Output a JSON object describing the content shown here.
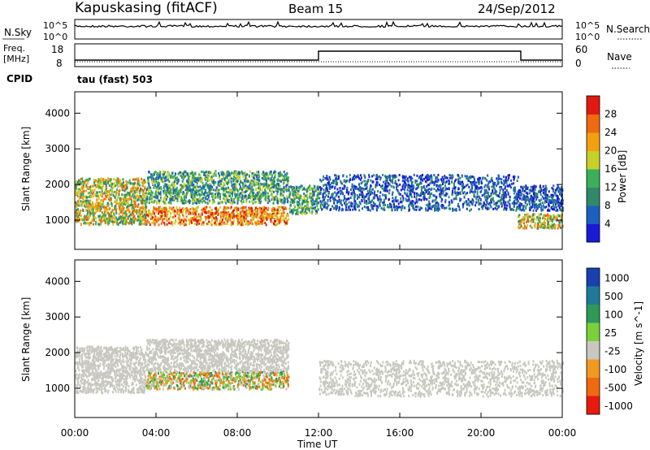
{
  "header": {
    "station": "Kapuskasing (fitACF)",
    "beam": "Beam 15",
    "date": "24/Sep/2012"
  },
  "noise_panel": {
    "left_label": "N.Sky",
    "left_ticks": [
      "10^5",
      "10^0"
    ],
    "right_ticks": [
      "10^5",
      "10^0"
    ],
    "right_label": "N.Search"
  },
  "freq_panel": {
    "left_label_1": "Freq.",
    "left_label_2": "[MHz]",
    "left_ticks": [
      "18",
      "8"
    ],
    "right_ticks": [
      "60",
      "0"
    ],
    "right_label": "Nave"
  },
  "cpid": {
    "label": "CPID",
    "program": "tau (fast) 503"
  },
  "x_axis": {
    "ticks": [
      "00:00",
      "04:00",
      "08:00",
      "12:00",
      "16:00",
      "20:00",
      "00:00"
    ],
    "label": "Time UT"
  },
  "chart_data": [
    {
      "type": "heatmap",
      "quantity": "Power",
      "ylabel": "Slant Range [km]",
      "yticks": [
        1000,
        2000,
        3000,
        4000
      ],
      "ylim": [
        180,
        4600
      ],
      "xlim_hours": [
        0,
        24
      ],
      "colorbar": {
        "label": "Power [dB]",
        "ticks": [
          4,
          8,
          12,
          16,
          20,
          24,
          28
        ],
        "colors": [
          "#1a1ad6",
          "#1c5fc0",
          "#2f8a6a",
          "#3ab05a",
          "#c8d028",
          "#f2a010",
          "#f06a10",
          "#e01a10"
        ]
      },
      "echo_regions": [
        {
          "t_start": 0.0,
          "t_end": 3.5,
          "range_low": 900,
          "range_high": 2200,
          "level": "high"
        },
        {
          "t_start": 3.5,
          "t_end": 10.5,
          "range_low": 900,
          "range_high": 1400,
          "level": "very-high"
        },
        {
          "t_start": 3.5,
          "t_end": 10.5,
          "range_low": 1500,
          "range_high": 2400,
          "level": "medium"
        },
        {
          "t_start": 10.5,
          "t_end": 12.0,
          "range_low": 1200,
          "range_high": 2000,
          "level": "medium"
        },
        {
          "t_start": 12.0,
          "t_end": 21.8,
          "range_low": 1300,
          "range_high": 2300,
          "level": "low"
        },
        {
          "t_start": 21.8,
          "t_end": 24.0,
          "range_low": 800,
          "range_high": 1200,
          "level": "high"
        },
        {
          "t_start": 21.8,
          "t_end": 24.0,
          "range_low": 1300,
          "range_high": 2000,
          "level": "low"
        }
      ]
    },
    {
      "type": "heatmap",
      "quantity": "Velocity",
      "ylabel": "Slant Range [km]",
      "yticks": [
        1000,
        2000,
        3000,
        4000
      ],
      "ylim": [
        180,
        4600
      ],
      "xlim_hours": [
        0,
        24
      ],
      "colorbar": {
        "label": "Velocity [m s^-1]",
        "ticks": [
          1000,
          500,
          100,
          25,
          -25,
          -100,
          -500,
          -1000
        ],
        "colors": [
          "#1a3fb0",
          "#1f7a9a",
          "#2e9a58",
          "#7cd03a",
          "#c8c8c0",
          "#f09a20",
          "#f06a10",
          "#e81a10"
        ]
      },
      "echo_regions": [
        {
          "t_start": 0.0,
          "t_end": 3.5,
          "range_low": 900,
          "range_high": 2200,
          "level": "ground"
        },
        {
          "t_start": 3.5,
          "t_end": 10.5,
          "range_low": 1000,
          "range_high": 1500,
          "level": "mixed"
        },
        {
          "t_start": 3.5,
          "t_end": 10.5,
          "range_low": 1500,
          "range_high": 2400,
          "level": "ground"
        },
        {
          "t_start": 12.0,
          "t_end": 24.0,
          "range_low": 800,
          "range_high": 1800,
          "level": "ground"
        }
      ]
    }
  ]
}
